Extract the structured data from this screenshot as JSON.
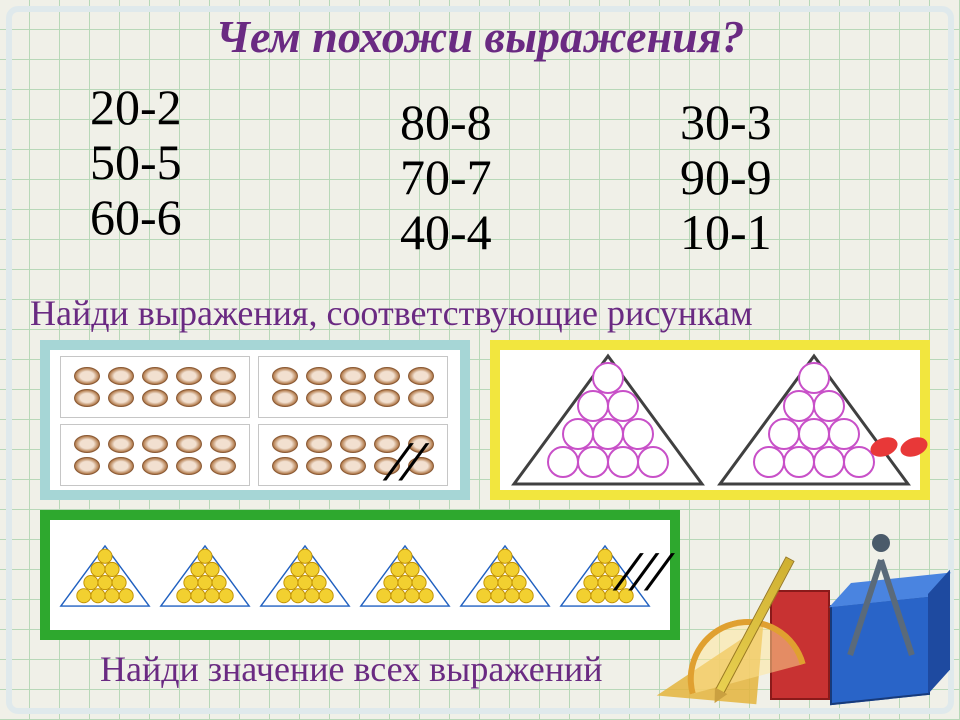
{
  "title": "Чем похожи выражения?",
  "title_color": "#6a2a82",
  "columns": {
    "c1": {
      "e1": "20-2",
      "e2": "50-5",
      "e3": "60-6"
    },
    "c2": {
      "e1": "80-8",
      "e2": "70-7",
      "e3": "40-4"
    },
    "c3": {
      "e1": "30-3",
      "e2": "90-9",
      "e3": "10-1"
    }
  },
  "subtitle1": "Найди выражения, соответствующие рисункам",
  "subtitle2": "Найди значение всех выражений",
  "text_color": "#6a2a82",
  "expression_fontsize": 50,
  "pictures": {
    "A": {
      "type": "grouped-ovals",
      "groups": 4,
      "per_group": 10,
      "coin_color": "#b07848",
      "frame_color": "#a6d6d6",
      "crossed_out_mark": "//"
    },
    "B": {
      "type": "triangle-of-circles",
      "triangles": 2,
      "rows": 4,
      "circles_total": 10,
      "outline_color": "#c850c8",
      "fill_color": "#ffffff",
      "triangle_line_color": "#404040",
      "frame_color": "#f2e63e",
      "crossed_out_mark": "oo",
      "mark_color": "#e83838"
    },
    "C": {
      "type": "triangle-of-circles",
      "triangles": 6,
      "rows": 4,
      "circles_total": 10,
      "outline_color": "#c09000",
      "fill_color": "#f2d030",
      "triangle_line_color": "#2060c0",
      "frame_color": "#2ea82e",
      "crossed_out_mark": "///"
    }
  },
  "background": {
    "grid_color": "#b8d8b8",
    "paper_color": "#f0f0e8"
  },
  "decorations": {
    "items": [
      "blue-cube",
      "red-block",
      "set-square",
      "protractor",
      "pencil",
      "compass"
    ]
  }
}
